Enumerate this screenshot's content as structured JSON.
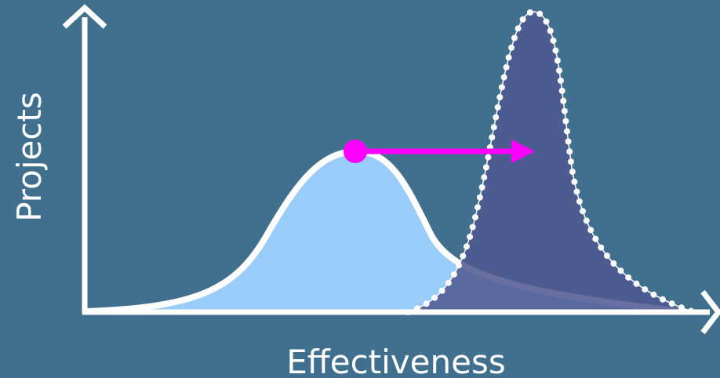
{
  "axes": {
    "y_label": "Projects",
    "x_label": "Effectiveness"
  }
}
